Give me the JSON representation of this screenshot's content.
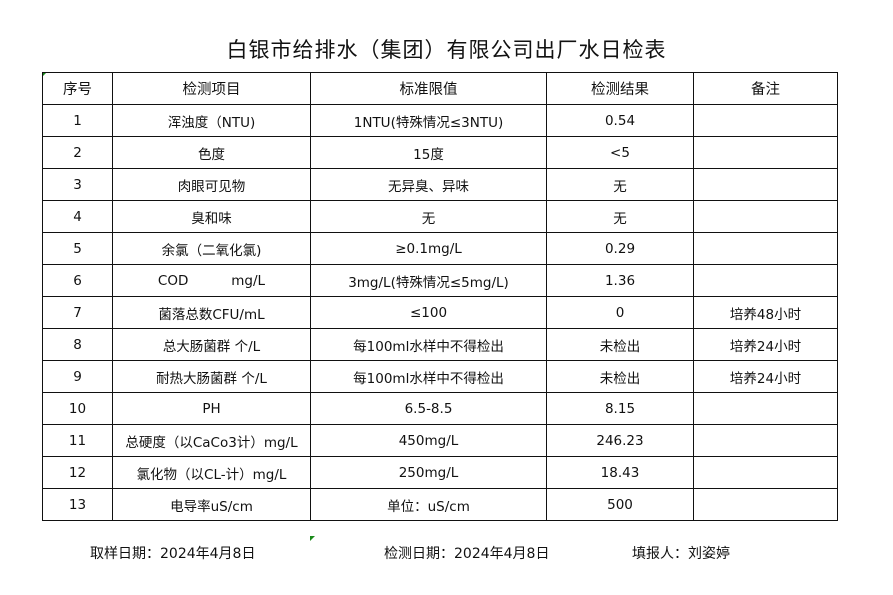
{
  "title": "白银市给排水（集团）有限公司出厂水日检表",
  "headers": [
    "序号",
    "检测项目",
    "标准限值",
    "检测结果",
    "备注"
  ],
  "rows": [
    [
      "1",
      "浑浊度（NTU)",
      "1NTU(特殊情况≤3NTU)",
      "0.54",
      ""
    ],
    [
      "2",
      "色度",
      "15度",
      "<5",
      ""
    ],
    [
      "3",
      "肉眼可见物",
      "无异臭、异味",
      "无",
      ""
    ],
    [
      "4",
      "臭和味",
      "无",
      "无",
      ""
    ],
    [
      "5",
      "余氯（二氧化氯)",
      "≥0.1mg/L",
      "0.29",
      ""
    ],
    [
      "6",
      "COD          mg/L",
      "3mg/L(特殊情况≤5mg/L)",
      "1.36",
      ""
    ],
    [
      "7",
      "菌落总数CFU/mL",
      "≤100",
      "0",
      "培养48小时"
    ],
    [
      "8",
      "总大肠菌群 个/L",
      "每100ml水样中不得检出",
      "未检出",
      "培养24小时"
    ],
    [
      "9",
      "耐热大肠菌群 个/L",
      "每100ml水样中不得检出",
      "未检出",
      "培养24小时"
    ],
    [
      "10",
      "PH",
      "6.5-8.5",
      "8.15",
      ""
    ],
    [
      "11",
      "总硬度（以CaCo3计）mg/L",
      "450mg/L",
      "246.23",
      ""
    ],
    [
      "12",
      "氯化物（以CL-计）mg/L",
      "250mg/L",
      "18.43",
      ""
    ],
    [
      "13",
      "电导率uS/cm",
      "单位：uS/cm",
      "500",
      ""
    ]
  ],
  "footer": {
    "sampling_date": "取样日期：2024年4月8日",
    "test_date": "检测日期：2024年4月8日",
    "reporter": "填报人：刘姿婷"
  }
}
